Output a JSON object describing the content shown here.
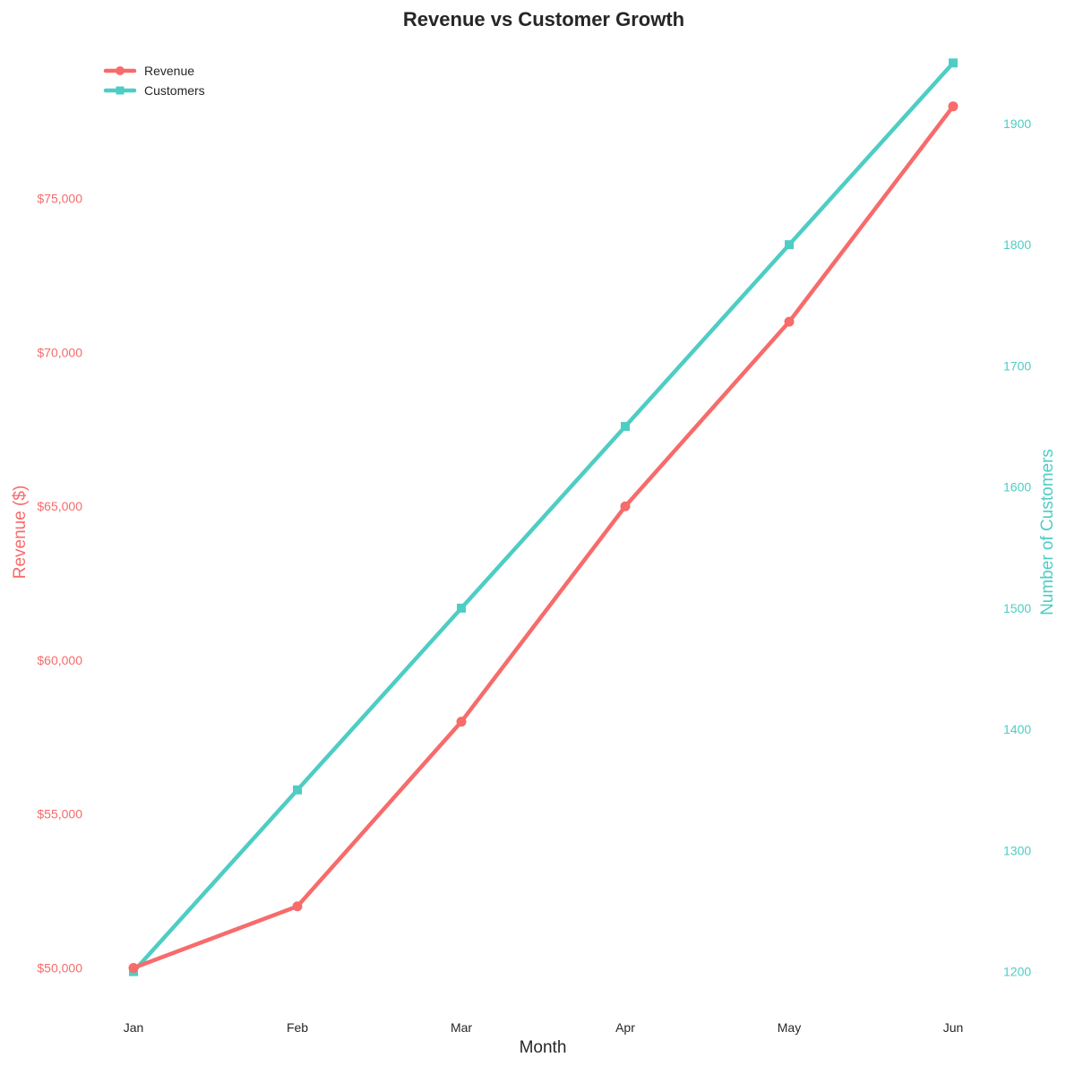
{
  "colors": {
    "revenue": "#f76b6b",
    "customers": "#4ecdc4",
    "text": "#262626"
  },
  "chart_data": {
    "type": "line",
    "title": "Revenue vs Customer Growth",
    "xlabel": "Month",
    "categories": [
      "Jan",
      "Feb",
      "Mar",
      "Apr",
      "May",
      "Jun"
    ],
    "legend_position": "top-left",
    "grid": false,
    "left_axis": {
      "label": "Revenue ($)",
      "range": [
        48500,
        80000
      ],
      "ticks": [
        50000,
        55000,
        60000,
        65000,
        70000,
        75000
      ],
      "tick_labels": [
        "$50,000",
        "$55,000",
        "$60,000",
        "$65,000",
        "$70,000",
        "$75,000"
      ]
    },
    "right_axis": {
      "label": "Number of Customers",
      "range": [
        1165,
        1965
      ],
      "ticks": [
        1200,
        1300,
        1400,
        1500,
        1600,
        1700,
        1800,
        1900
      ],
      "tick_labels": [
        "1200",
        "1300",
        "1400",
        "1500",
        "1600",
        "1700",
        "1800",
        "1900"
      ]
    },
    "series": [
      {
        "name": "Revenue",
        "axis": "left",
        "marker": "circle",
        "values": [
          50000,
          52000,
          58000,
          65000,
          71000,
          78000
        ]
      },
      {
        "name": "Customers",
        "axis": "right",
        "marker": "square",
        "values": [
          1200,
          1350,
          1500,
          1650,
          1800,
          1950
        ]
      }
    ]
  }
}
